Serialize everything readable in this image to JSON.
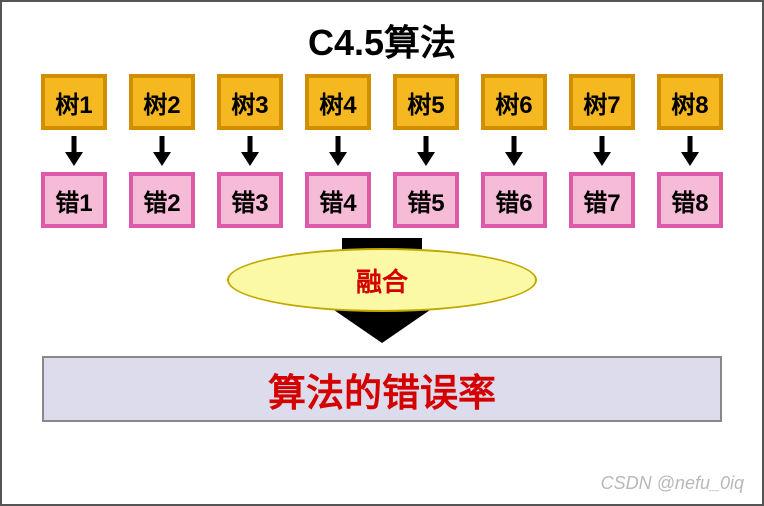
{
  "title": "C4.5算法",
  "trees": {
    "labels": [
      "树1",
      "树2",
      "树3",
      "树4",
      "树5",
      "树6",
      "树7",
      "树8"
    ],
    "bg_color": "#f5b821",
    "border_color": "#d18e00",
    "text_color": "#000000"
  },
  "errors": {
    "labels": [
      "错1",
      "错2",
      "错3",
      "错4",
      "错5",
      "错6",
      "错7",
      "错8"
    ],
    "bg_color": "#f6bbd7",
    "border_color": "#dd5aa8",
    "text_color": "#000000"
  },
  "small_arrow_color": "#000000",
  "fusion": {
    "label": "融合",
    "bg_color": "#fbf9a6",
    "border_color": "#c2a800",
    "text_color": "#d40000"
  },
  "big_arrow_color": "#000000",
  "result": {
    "label": "算法的错误率",
    "bg_color": "#dcdced",
    "text_color": "#d40000"
  },
  "watermark": "CSDN @nefu_0iq"
}
